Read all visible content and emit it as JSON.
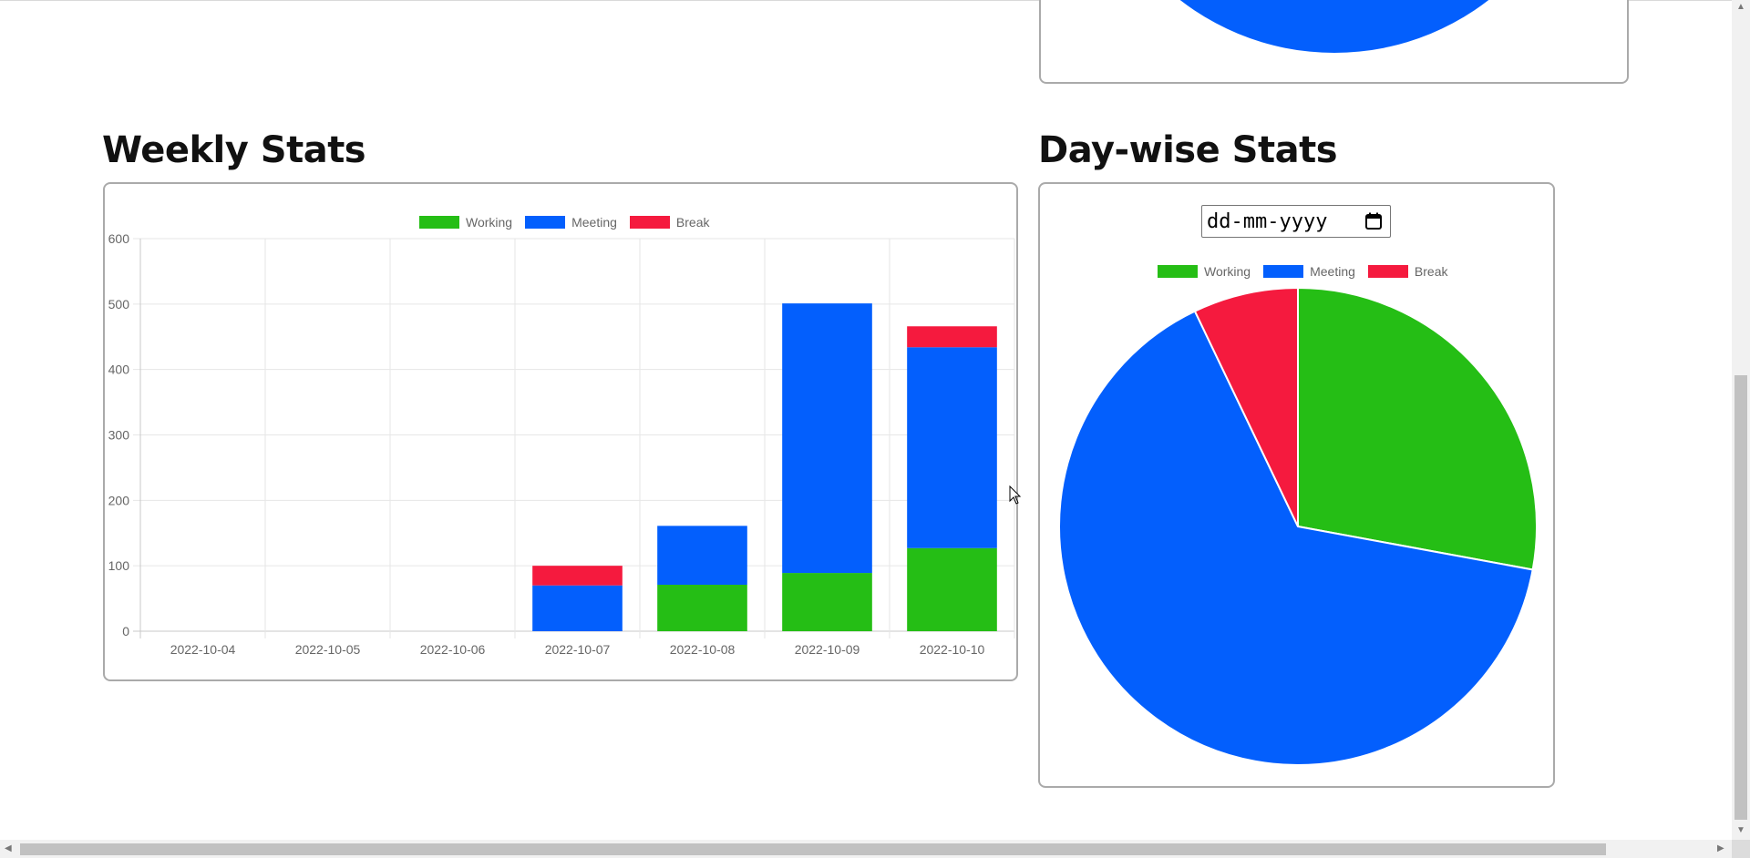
{
  "weekly": {
    "heading": "Weekly Stats",
    "legend": [
      {
        "label": "Working",
        "color": "#25be15"
      },
      {
        "label": "Meeting",
        "color": "#035ffd"
      },
      {
        "label": "Break",
        "color": "#f51a3e"
      }
    ]
  },
  "daywise": {
    "heading": "Day-wise Stats",
    "date_placeholder": "dd-mm-yyyy",
    "legend": [
      {
        "label": "Working",
        "color": "#25be15"
      },
      {
        "label": "Meeting",
        "color": "#035ffd"
      },
      {
        "label": "Break",
        "color": "#f51a3e"
      }
    ]
  },
  "icons": {
    "calendar": "calendar-icon",
    "cursor": "mouse-pointer-icon"
  },
  "chart_data": [
    {
      "type": "bar",
      "stacked": true,
      "title": "",
      "categories": [
        "2022-10-04",
        "2022-10-05",
        "2022-10-06",
        "2022-10-07",
        "2022-10-08",
        "2022-10-09",
        "2022-10-10"
      ],
      "series": [
        {
          "name": "Working",
          "color": "#25be15",
          "values": [
            0,
            0,
            0,
            0,
            71,
            89,
            127
          ]
        },
        {
          "name": "Meeting",
          "color": "#035ffd",
          "values": [
            0,
            0,
            0,
            70,
            90,
            412,
            307
          ]
        },
        {
          "name": "Break",
          "color": "#f51a3e",
          "values": [
            0,
            0,
            0,
            30,
            0,
            0,
            32
          ]
        }
      ],
      "ylim": [
        0,
        600
      ],
      "yticks": [
        0,
        100,
        200,
        300,
        400,
        500,
        600
      ],
      "grid": true,
      "legend_position": "top"
    },
    {
      "type": "pie",
      "title": "",
      "labels": [
        "Working",
        "Meeting",
        "Break"
      ],
      "colors": [
        "#25be15",
        "#035ffd",
        "#f51a3e"
      ],
      "values": [
        27.9,
        65.0,
        7.1
      ],
      "legend_position": "top"
    }
  ]
}
